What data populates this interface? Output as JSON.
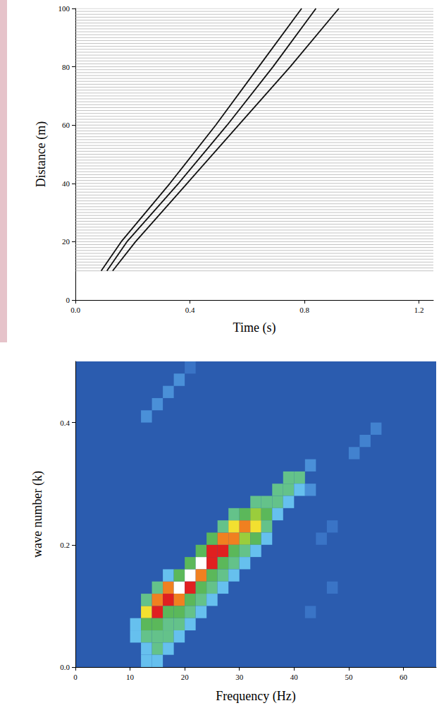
{
  "chart_data": [
    {
      "type": "wiggle",
      "xlabel": "Time (s)",
      "ylabel": "Distance (m)",
      "xlim": [
        0,
        1.25
      ],
      "xticks": [
        {
          "value": 0,
          "label": "0.0"
        },
        0.4,
        0.8,
        1.2
      ],
      "ylim": [
        0,
        100
      ],
      "yticks": [
        0,
        20,
        40,
        60,
        80,
        100
      ],
      "traces": [
        10,
        11,
        12,
        13,
        14,
        15,
        16,
        17,
        18,
        19,
        20,
        21,
        22,
        23,
        24,
        25,
        26,
        27,
        28,
        29,
        30,
        31,
        32,
        33,
        34,
        35,
        36,
        37,
        38,
        39,
        40,
        41,
        42,
        43,
        44,
        45,
        46,
        47,
        48,
        49,
        50,
        51,
        52,
        53,
        54,
        55,
        56,
        57,
        58,
        59,
        60,
        61,
        62,
        63,
        64,
        65,
        66,
        67,
        68,
        69,
        70,
        71,
        72,
        73,
        74,
        75,
        76,
        77,
        78,
        79,
        80,
        81,
        82,
        83,
        84,
        85,
        86,
        87,
        88,
        89,
        90,
        91,
        92,
        93,
        94,
        95,
        96,
        97,
        98,
        99,
        100
      ],
      "series": [
        {
          "color": "#111111",
          "x": [
            0.09,
            0.16,
            0.33,
            0.49,
            0.64,
            0.79
          ],
          "values": [
            10,
            20,
            40,
            60,
            80,
            100
          ]
        },
        {
          "color": "#111111",
          "x": [
            0.11,
            0.18,
            0.36,
            0.53,
            0.69,
            0.84
          ],
          "values": [
            10,
            20,
            40,
            60,
            80,
            100
          ]
        },
        {
          "color": "#111111",
          "x": [
            0.13,
            0.21,
            0.39,
            0.57,
            0.75,
            0.92
          ],
          "values": [
            10,
            20,
            40,
            60,
            80,
            100
          ]
        }
      ]
    },
    {
      "type": "heatmap",
      "xlabel": "Frequency (Hz)",
      "ylabel": "wave number (k)",
      "xlim": [
        0,
        66
      ],
      "xticks": [
        0,
        10,
        20,
        30,
        40,
        50,
        60
      ],
      "ylim": [
        0,
        0.5
      ],
      "yticks": [
        {
          "value": 0,
          "label": "0.0"
        },
        0.2,
        0.4
      ],
      "color_range": [
        0,
        10
      ],
      "cells": [
        [
          11,
          0.07,
          3
        ],
        [
          11,
          0.05,
          3
        ],
        [
          13,
          0.09,
          7
        ],
        [
          13,
          0.07,
          5
        ],
        [
          13,
          0.11,
          4
        ],
        [
          13,
          0.05,
          4
        ],
        [
          13,
          0.03,
          3
        ],
        [
          13,
          0.01,
          3
        ],
        [
          15,
          0.09,
          9
        ],
        [
          15,
          0.11,
          8
        ],
        [
          15,
          0.07,
          5
        ],
        [
          15,
          0.13,
          4
        ],
        [
          15,
          0.05,
          4
        ],
        [
          15,
          0.03,
          4
        ],
        [
          15,
          0.01,
          3
        ],
        [
          17,
          0.11,
          9
        ],
        [
          17,
          0.13,
          8
        ],
        [
          17,
          0.09,
          5
        ],
        [
          17,
          0.07,
          4
        ],
        [
          17,
          0.15,
          3
        ],
        [
          17,
          0.05,
          4
        ],
        [
          17,
          0.03,
          3
        ],
        [
          19,
          0.13,
          10
        ],
        [
          19,
          0.11,
          8
        ],
        [
          19,
          0.15,
          5
        ],
        [
          19,
          0.09,
          5
        ],
        [
          19,
          0.07,
          4
        ],
        [
          19,
          0.05,
          3
        ],
        [
          21,
          0.15,
          10
        ],
        [
          21,
          0.13,
          9
        ],
        [
          21,
          0.17,
          5
        ],
        [
          21,
          0.11,
          5
        ],
        [
          21,
          0.09,
          4
        ],
        [
          21,
          0.07,
          3
        ],
        [
          23,
          0.17,
          10
        ],
        [
          23,
          0.15,
          8
        ],
        [
          23,
          0.19,
          5
        ],
        [
          23,
          0.13,
          5
        ],
        [
          23,
          0.11,
          4
        ],
        [
          23,
          0.09,
          3
        ],
        [
          25,
          0.17,
          9
        ],
        [
          25,
          0.19,
          9
        ],
        [
          25,
          0.21,
          5
        ],
        [
          25,
          0.15,
          5
        ],
        [
          25,
          0.13,
          4
        ],
        [
          25,
          0.11,
          3
        ],
        [
          27,
          0.19,
          9
        ],
        [
          27,
          0.21,
          8
        ],
        [
          27,
          0.17,
          5
        ],
        [
          27,
          0.23,
          4
        ],
        [
          27,
          0.15,
          4
        ],
        [
          27,
          0.13,
          3
        ],
        [
          29,
          0.21,
          8
        ],
        [
          29,
          0.23,
          7
        ],
        [
          29,
          0.19,
          5
        ],
        [
          29,
          0.25,
          4
        ],
        [
          29,
          0.17,
          4
        ],
        [
          29,
          0.15,
          3
        ],
        [
          31,
          0.23,
          8
        ],
        [
          31,
          0.21,
          6
        ],
        [
          31,
          0.25,
          5
        ],
        [
          31,
          0.19,
          4
        ],
        [
          31,
          0.17,
          3
        ],
        [
          33,
          0.23,
          7
        ],
        [
          33,
          0.25,
          6
        ],
        [
          33,
          0.21,
          5
        ],
        [
          33,
          0.27,
          4
        ],
        [
          33,
          0.19,
          3
        ],
        [
          35,
          0.25,
          5
        ],
        [
          35,
          0.27,
          4
        ],
        [
          35,
          0.23,
          4
        ],
        [
          35,
          0.21,
          3
        ],
        [
          37,
          0.27,
          4
        ],
        [
          37,
          0.29,
          4
        ],
        [
          37,
          0.25,
          3
        ],
        [
          39,
          0.29,
          4
        ],
        [
          39,
          0.31,
          4
        ],
        [
          39,
          0.27,
          3
        ],
        [
          41,
          0.31,
          4
        ],
        [
          41,
          0.29,
          3
        ],
        [
          43,
          0.33,
          2
        ],
        [
          43,
          0.29,
          2
        ],
        [
          13,
          0.41,
          2
        ],
        [
          15,
          0.43,
          2
        ],
        [
          17,
          0.45,
          2
        ],
        [
          19,
          0.47,
          2
        ],
        [
          21,
          0.49,
          1
        ],
        [
          51,
          0.35,
          1.5
        ],
        [
          53,
          0.37,
          1.5
        ],
        [
          55,
          0.39,
          1.5
        ],
        [
          45,
          0.21,
          1
        ],
        [
          47,
          0.23,
          1
        ],
        [
          43,
          0.09,
          1
        ],
        [
          47,
          0.13,
          1
        ]
      ]
    }
  ]
}
